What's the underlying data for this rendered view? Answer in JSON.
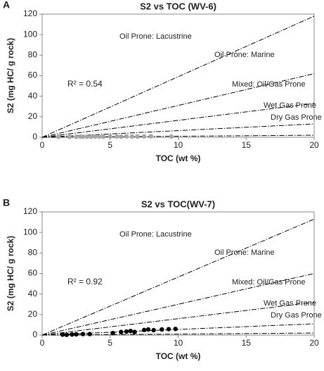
{
  "chart_data": [
    {
      "type": "scatter",
      "panel": "A",
      "title": "S2 vs TOC (WV-6)",
      "x_label": "TOC (wt %)",
      "y_label": "S2 (mg HC/ g rock)",
      "annotation": "R² = 0.54",
      "xlim": [
        0,
        20
      ],
      "ylim": [
        0,
        120
      ],
      "xticks": [
        0,
        5,
        10,
        15,
        20
      ],
      "yticks": [
        0,
        20,
        40,
        60,
        80,
        100,
        120
      ],
      "series": [
        {
          "color": "#a6a6a6",
          "x": [
            1.2,
            2.0,
            2.5,
            2.8,
            3.0,
            3.3,
            3.6,
            3.9,
            4.2,
            4.5,
            5.0,
            5.5,
            5.8,
            6.2,
            6.6,
            7.0,
            7.5,
            8.0,
            9.5
          ],
          "values": [
            0.5,
            0.4,
            0.5,
            0.6,
            0.5,
            0.6,
            0.5,
            0.7,
            0.6,
            0.5,
            0.7,
            0.8,
            0.6,
            0.9,
            0.8,
            0.7,
            0.9,
            1.0,
            0.8
          ]
        }
      ],
      "lines": [
        {
          "name": "Oil Prone: Lacustrine",
          "x": [
            0,
            20
          ],
          "y": [
            0,
            118
          ]
        },
        {
          "name": "Oil Prone: Marine",
          "x": [
            0,
            20
          ],
          "y": [
            0,
            62
          ]
        },
        {
          "name": "Mixed: Oil/Gas Prone",
          "x": [
            0,
            20
          ],
          "y": [
            0,
            33
          ]
        },
        {
          "name": "Wet Gas Prone",
          "x": [
            0,
            20
          ],
          "y": [
            0,
            13
          ]
        },
        {
          "name": "Dry Gas Prone",
          "x": [
            0,
            20
          ],
          "y": [
            0,
            2
          ]
        }
      ]
    },
    {
      "type": "scatter",
      "panel": "B",
      "title": "S2 vs TOC(WV-7)",
      "x_label": "TOC (wt %)",
      "y_label": "S2 (mg HC/ g rock)",
      "annotation": "R² = 0.92",
      "xlim": [
        0,
        20
      ],
      "ylim": [
        0,
        120
      ],
      "xticks": [
        0,
        5,
        10,
        15,
        20
      ],
      "yticks": [
        0,
        20,
        40,
        60,
        80,
        100,
        120
      ],
      "series": [
        {
          "color": "#000000",
          "x": [
            1.5,
            1.8,
            2.2,
            2.5,
            3.0,
            3.5,
            5.2,
            5.8,
            6.2,
            6.5,
            6.8,
            7.5,
            7.8,
            8.2,
            8.8,
            9.3,
            9.8
          ],
          "values": [
            0.5,
            0.3,
            0.6,
            0.8,
            1,
            1,
            2,
            3,
            3.5,
            4,
            3,
            5,
            5.5,
            4.8,
            5.5,
            5.8,
            6
          ]
        }
      ],
      "lines": [
        {
          "name": "Oil Prone: Lacustrine",
          "x": [
            0,
            20
          ],
          "y": [
            0,
            113
          ]
        },
        {
          "name": "Oil Prone: Marine",
          "x": [
            0,
            20
          ],
          "y": [
            0,
            60
          ]
        },
        {
          "name": "Mixed: Oil/Gas Prone",
          "x": [
            0,
            20
          ],
          "y": [
            0,
            32
          ]
        },
        {
          "name": "Wet Gas Prone",
          "x": [
            0,
            20
          ],
          "y": [
            0,
            11
          ]
        },
        {
          "name": "Dry Gas Prone",
          "x": [
            0,
            20
          ],
          "y": [
            0,
            2
          ]
        }
      ]
    }
  ]
}
